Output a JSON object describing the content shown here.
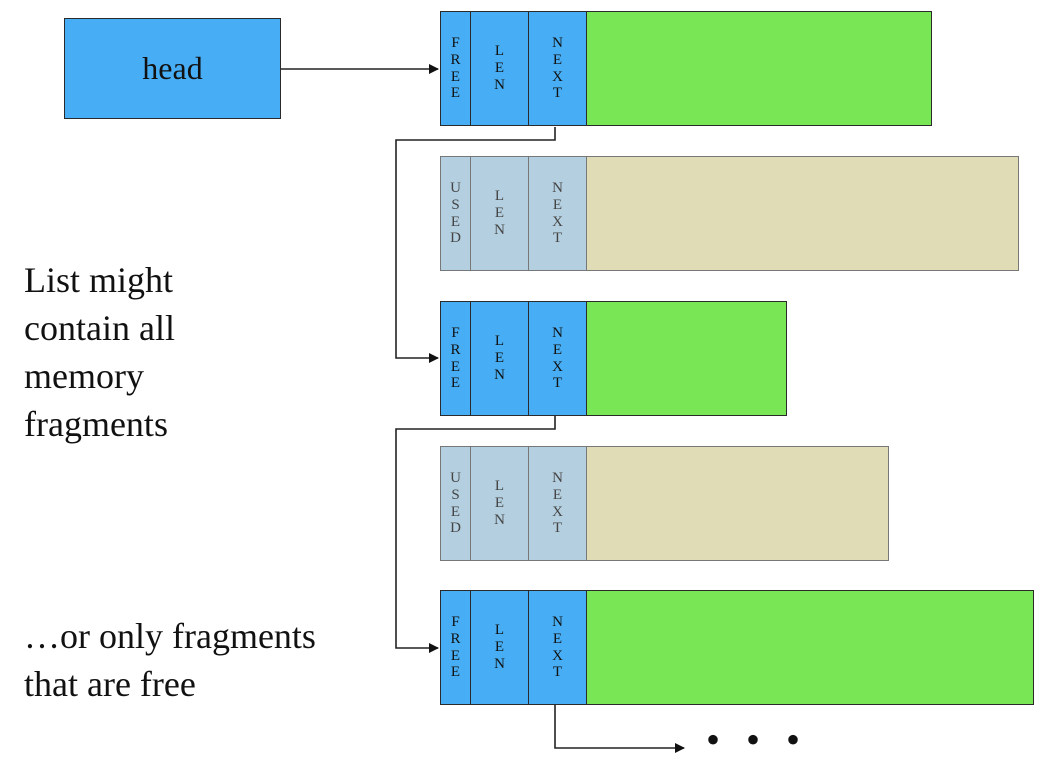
{
  "head": {
    "label": "head"
  },
  "blocks": [
    {
      "state": "free",
      "status": "FREE",
      "len": "LEN",
      "next": "NEXT"
    },
    {
      "state": "used",
      "status": "USED",
      "len": "LEN",
      "next": "NEXT"
    },
    {
      "state": "free",
      "status": "FREE",
      "len": "LEN",
      "next": "NEXT"
    },
    {
      "state": "used",
      "status": "USED",
      "len": "LEN",
      "next": "NEXT"
    },
    {
      "state": "free",
      "status": "FREE",
      "len": "LEN",
      "next": "NEXT"
    }
  ],
  "captions": {
    "all": "List might contain all memory fragments",
    "free_only": "…or only fragments that are free"
  },
  "continuation": "• • •",
  "colors": {
    "header_free": "#47aef5",
    "data_free": "#79e655",
    "header_used": "#b4cfe0",
    "data_used": "#e0dcb6"
  }
}
